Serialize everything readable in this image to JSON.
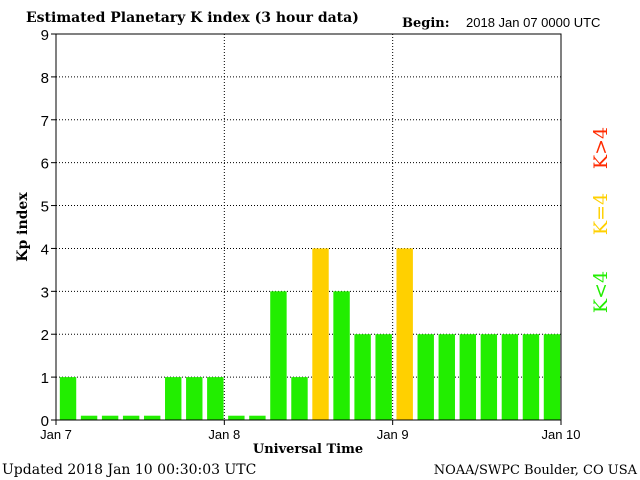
{
  "header": {
    "title": "Estimated Planetary K index (3 hour data)",
    "begin_label": "Begin:",
    "begin_value": "2018 Jan 07 0000 UTC"
  },
  "footer": {
    "updated": "Updated 2018 Jan 10 00:30:03 UTC",
    "source": "NOAA/SWPC Boulder, CO USA"
  },
  "legend": {
    "items": [
      {
        "label": "K>4",
        "color": "#ff2a00"
      },
      {
        "label": "K=4",
        "color": "#ffd000"
      },
      {
        "label": "K<4",
        "color": "#22ee00"
      }
    ]
  },
  "colors": {
    "low": "#22ee00",
    "mid": "#ffd000",
    "high": "#ff2a00",
    "axis": "#000000"
  },
  "chart_data": {
    "type": "bar",
    "title": "Estimated Planetary K index (3 hour data)",
    "xlabel": "Universal Time",
    "ylabel": "Kp index",
    "ylim": [
      0,
      9
    ],
    "yticks": [
      0,
      1,
      2,
      3,
      4,
      5,
      6,
      7,
      8,
      9
    ],
    "xticks": [
      "Jan 7",
      "Jan 8",
      "Jan 9",
      "Jan 10"
    ],
    "grid": true,
    "bar_width_fraction": 0.78,
    "zero_stub": 0.1,
    "series": [
      {
        "values": [
          1,
          0,
          0,
          0,
          0,
          1,
          1,
          1,
          0,
          0,
          3,
          1,
          4,
          3,
          2,
          2,
          4,
          2,
          2,
          2,
          2,
          2,
          2,
          2
        ]
      }
    ]
  }
}
